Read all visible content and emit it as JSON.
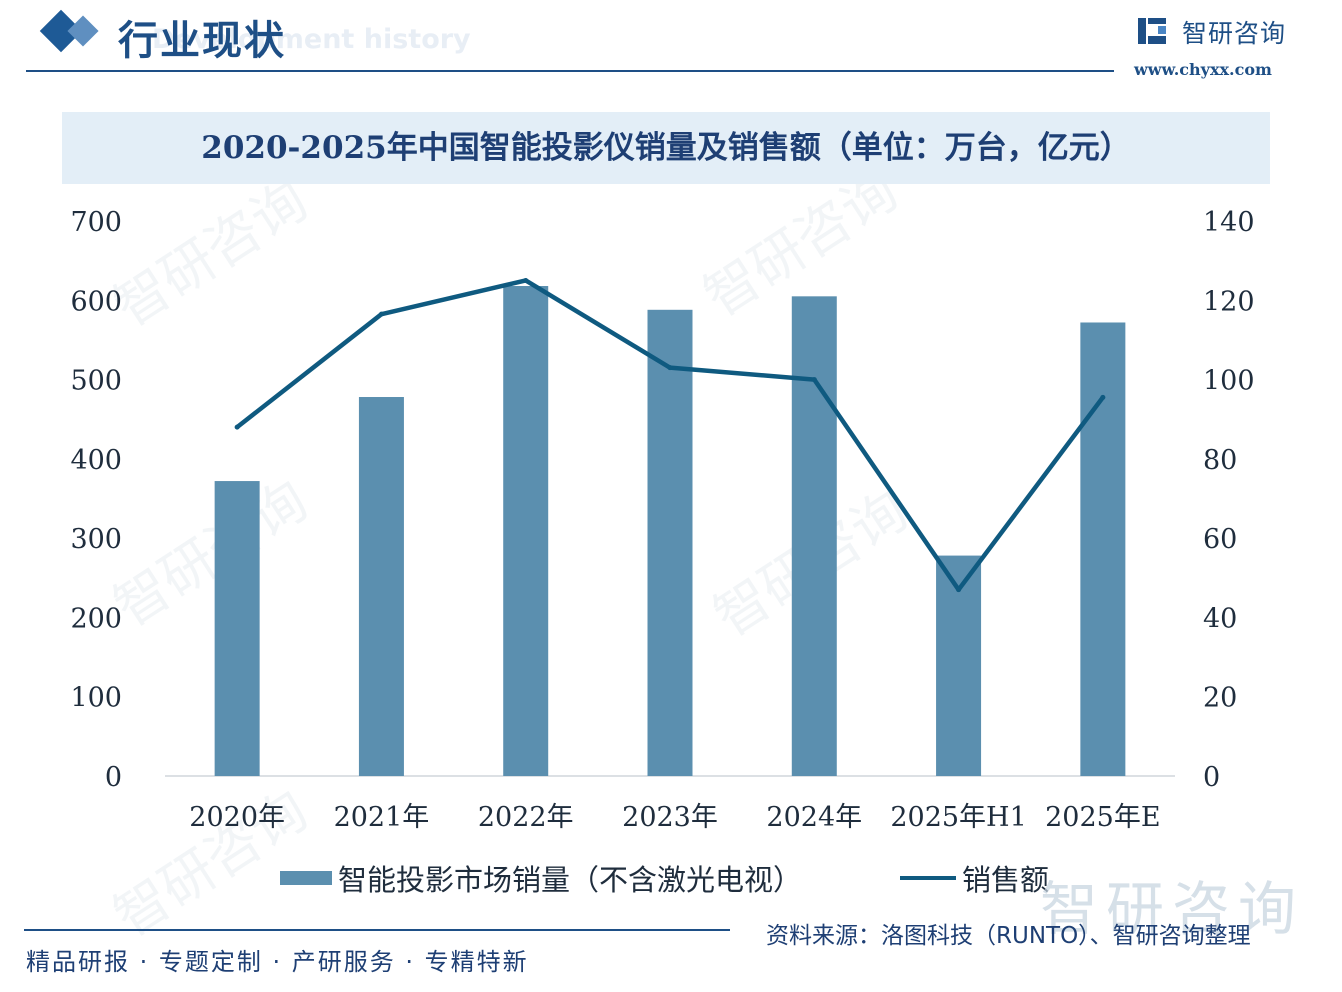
{
  "header": {
    "section_title": "行业现状",
    "section_subtitle": "Development history",
    "brand_name": "智研咨询",
    "brand_url": "www.chyxx.com"
  },
  "colors": {
    "accent": "#1e4f86",
    "bar": "#5b8faf",
    "line": "#0f5a80"
  },
  "chart_data": {
    "type": "bar",
    "title": "2020-2025年中国智能投影仪销量及销售额（单位：万台，亿元）",
    "categories": [
      "2020年",
      "2021年",
      "2022年",
      "2023年",
      "2024年",
      "2025年H1",
      "2025年E"
    ],
    "y_left": {
      "ticks": [
        "0",
        "100",
        "200",
        "300",
        "400",
        "500",
        "600",
        "700"
      ],
      "ylim": [
        0,
        700
      ]
    },
    "y_right": {
      "ticks": [
        "0",
        "20",
        "40",
        "60",
        "80",
        "100",
        "120",
        "140"
      ],
      "ylim": [
        0,
        140
      ]
    },
    "series": [
      {
        "name": "智能投影市场销量（不含激光电视）",
        "type": "bar",
        "axis": "left",
        "values": [
          372,
          478,
          618,
          588,
          605,
          278,
          572
        ]
      },
      {
        "name": "销售额",
        "type": "line",
        "axis": "right",
        "values": [
          88,
          116.5,
          125,
          103,
          100,
          47,
          95.5
        ]
      }
    ],
    "grid": false,
    "legend_position": "bottom"
  },
  "footer": {
    "tagline": "精品研报 · 专题定制 · 产研服务 · 专精特新",
    "source": "资料来源：洛图科技（RUNTO）、智研咨询整理"
  },
  "watermark": {
    "text": "智研咨询"
  }
}
